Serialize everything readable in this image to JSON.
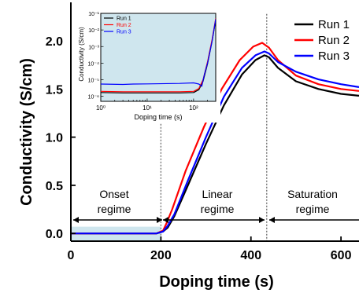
{
  "chart_data": [
    {
      "type": "line",
      "xlabel": "Doping time (s)",
      "ylabel": "Conductivity (S/cm)",
      "xlim": [
        0,
        640
      ],
      "ylim": [
        -0.08,
        2.4
      ],
      "xticks": [
        0,
        200,
        400,
        600
      ],
      "yticks": [
        0.0,
        0.5,
        1.0,
        1.5,
        2.0
      ],
      "xtick_labels": [
        "0",
        "200",
        "400",
        "600"
      ],
      "ytick_labels": [
        "0.0",
        "0.5",
        "1.0",
        "1.5",
        "2.0"
      ],
      "legend_position": "top-right",
      "colors": {
        "Run 1": "#000000",
        "Run 2": "#ff0000",
        "Run 3": "#0000ff",
        "shade": "#cfe6ee"
      },
      "series": [
        {
          "name": "Run 1",
          "color": "#000000",
          "x": [
            0,
            190,
            205,
            215,
            230,
            260,
            300,
            340,
            380,
            410,
            430,
            440,
            460,
            500,
            550,
            600,
            640
          ],
          "y": [
            0.0,
            0.0,
            0.02,
            0.06,
            0.18,
            0.5,
            0.93,
            1.33,
            1.65,
            1.8,
            1.85,
            1.83,
            1.72,
            1.58,
            1.5,
            1.45,
            1.43
          ]
        },
        {
          "name": "Run 2",
          "color": "#ff0000",
          "x": [
            0,
            190,
            205,
            212,
            225,
            255,
            295,
            335,
            375,
            405,
            425,
            440,
            460,
            500,
            550,
            600,
            640
          ],
          "y": [
            0.0,
            0.0,
            0.03,
            0.1,
            0.25,
            0.65,
            1.1,
            1.5,
            1.8,
            1.94,
            1.98,
            1.93,
            1.8,
            1.64,
            1.55,
            1.5,
            1.48
          ]
        },
        {
          "name": "Run 3",
          "color": "#0000ff",
          "x": [
            0,
            190,
            205,
            215,
            230,
            260,
            300,
            340,
            380,
            410,
            430,
            440,
            460,
            500,
            550,
            600,
            640
          ],
          "y": [
            0.0,
            0.0,
            0.02,
            0.08,
            0.2,
            0.55,
            1.0,
            1.42,
            1.72,
            1.85,
            1.89,
            1.87,
            1.78,
            1.68,
            1.6,
            1.55,
            1.52
          ]
        }
      ],
      "annotations": {
        "regimes": [
          {
            "line1": "Onset",
            "line2": "regime",
            "from": 0,
            "to": 200
          },
          {
            "line1": "Linear",
            "line2": "regime",
            "from": 200,
            "to": 435
          },
          {
            "line1": "Saturation",
            "line2": "regime",
            "from": 435,
            "to": 640
          }
        ],
        "dividers": [
          200,
          435
        ]
      }
    },
    {
      "type": "line",
      "xlabel": "Doping time (s)",
      "ylabel": "Conductivity (S/cm)",
      "x_scale": "log",
      "y_scale": "log",
      "xlim": [
        1,
        300
      ],
      "ylim": [
        5e-07,
        0.1
      ],
      "xticks": [
        1,
        10,
        100
      ],
      "yticks": [
        1e-06,
        1e-05,
        0.0001,
        0.001,
        0.01,
        0.1
      ],
      "xtick_labels": [
        "10⁰",
        "10¹",
        "10²"
      ],
      "ytick_labels": [
        "10⁻⁶",
        "10⁻⁵",
        "10⁻⁴",
        "10⁻³",
        "10⁻²",
        "10⁻¹"
      ],
      "legend_position": "top-left",
      "series": [
        {
          "name": "Run 1",
          "color": "#000000",
          "x": [
            1,
            3,
            10,
            50,
            100,
            130,
            160,
            200,
            250,
            300
          ],
          "y": [
            1.7e-06,
            1.6e-06,
            1.6e-06,
            1.6e-06,
            1.7e-06,
            2.5e-06,
            8e-06,
            9e-05,
            0.002,
            0.04
          ]
        },
        {
          "name": "Run 2",
          "color": "#ff0000",
          "x": [
            1,
            3,
            10,
            50,
            100,
            130,
            160,
            200,
            250,
            300
          ],
          "y": [
            2e-06,
            1.9e-06,
            1.9e-06,
            1.9e-06,
            2e-06,
            3e-06,
            1e-05,
            0.00012,
            0.0025,
            0.05
          ]
        },
        {
          "name": "Run 3",
          "color": "#0000ff",
          "x": [
            1,
            3,
            5,
            10,
            50,
            100,
            130,
            150,
            170,
            200,
            250,
            300
          ],
          "y": [
            5.5e-06,
            5.2e-06,
            5.5e-06,
            5.6e-06,
            6e-06,
            6.5e-06,
            5.5e-06,
            4e-06,
            2e-05,
            0.0001,
            0.002,
            0.045
          ]
        }
      ]
    }
  ]
}
